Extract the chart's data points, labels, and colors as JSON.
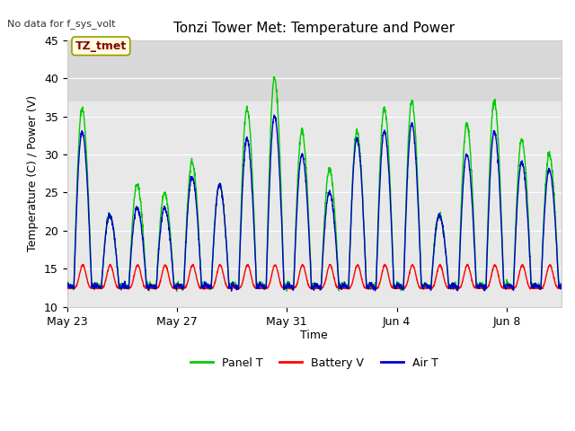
{
  "title": "Tonzi Tower Met: Temperature and Power",
  "top_left_text": "No data for f_sys_volt",
  "xlabel": "Time",
  "ylabel": "Temperature (C) / Power (V)",
  "ylim": [
    10,
    45
  ],
  "yticks": [
    10,
    15,
    20,
    25,
    30,
    35,
    40,
    45
  ],
  "xlim_days": [
    0,
    18
  ],
  "x_tick_labels": [
    "May 23",
    "May 27",
    "May 31",
    "Jun 4",
    "Jun 8"
  ],
  "x_tick_positions": [
    0,
    4,
    8,
    12,
    16
  ],
  "legend_labels": [
    "Panel T",
    "Battery V",
    "Air T"
  ],
  "panel_color": "#00cc00",
  "battery_color": "#ff0000",
  "air_color": "#0000cc",
  "figure_bg": "#ffffff",
  "plot_bg": "#e8e8e8",
  "upper_band_bg": "#d8d8d8",
  "grid_color": "#ffffff",
  "num_days": 18,
  "points_per_day": 144,
  "annotation_label": "TZ_tmet",
  "annotation_box_color": "#ffffe0",
  "annotation_box_edge": "#999900",
  "annotation_text_color": "#880000"
}
